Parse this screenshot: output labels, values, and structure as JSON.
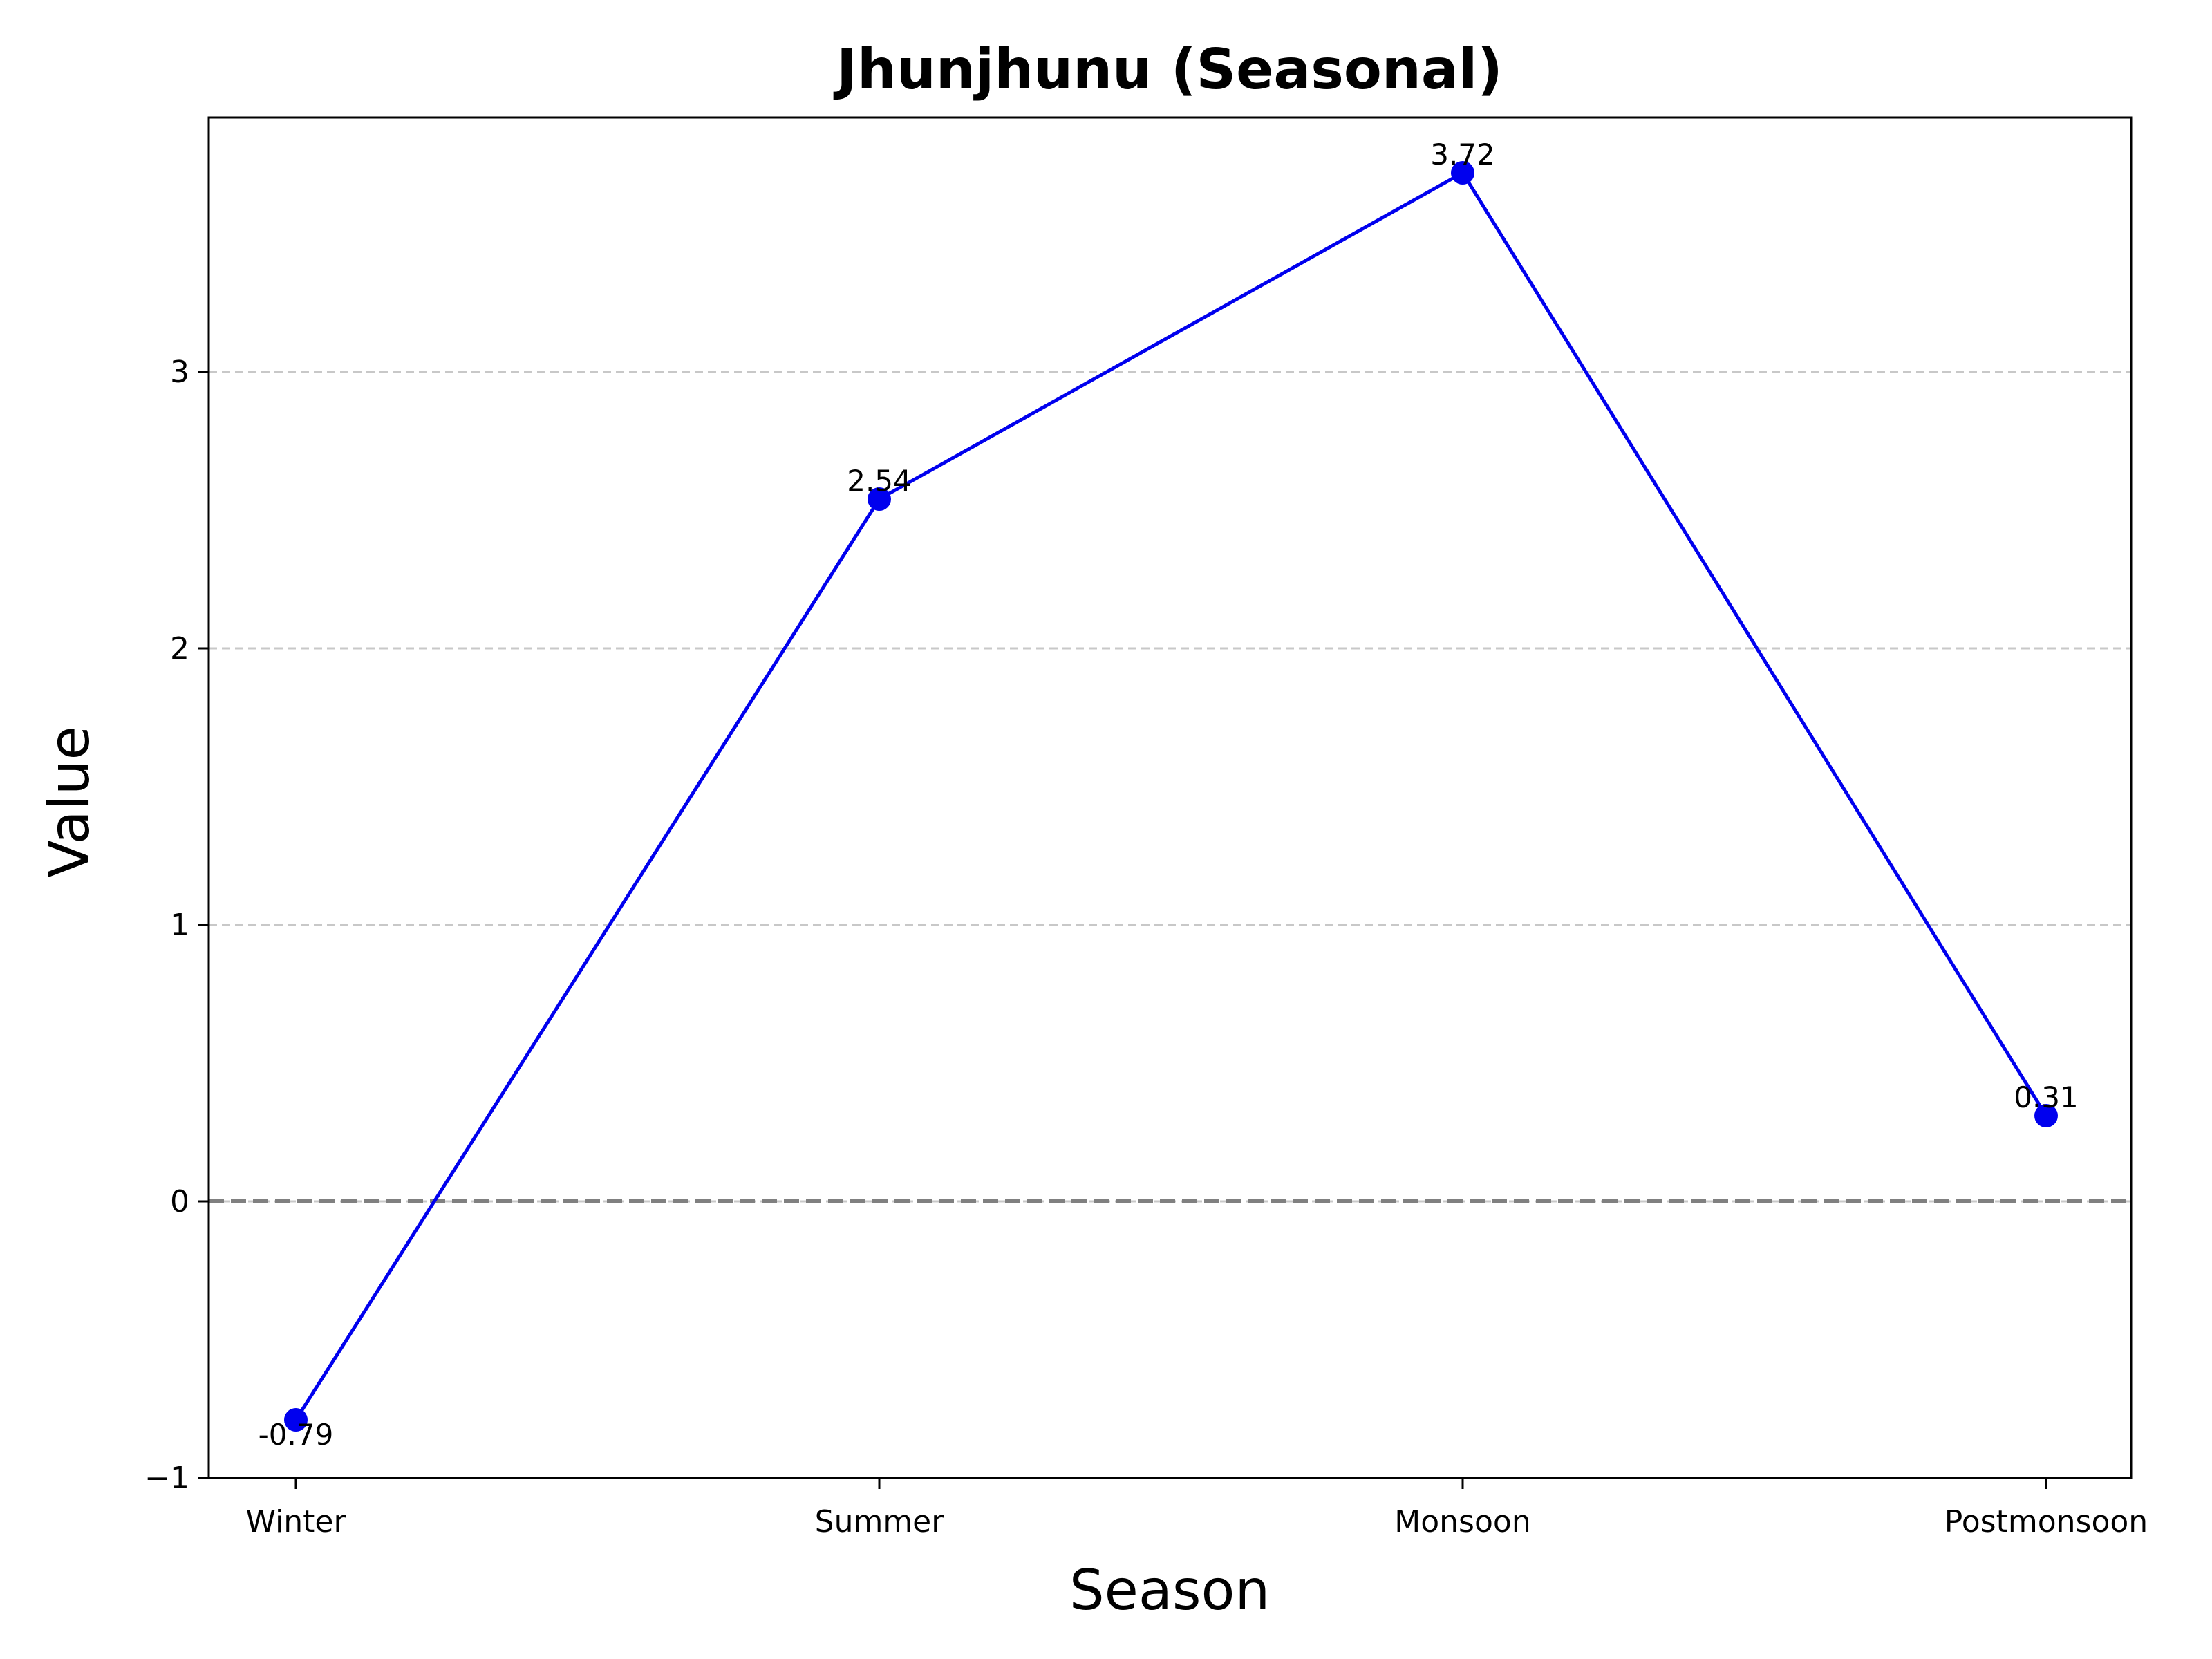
{
  "chart_data": {
    "type": "line",
    "title": "Jhunjhunu (Seasonal)",
    "xlabel": "Season",
    "ylabel": "Value",
    "categories": [
      "Winter",
      "Summer",
      "Monsoon",
      "Postmonsoon"
    ],
    "series": [
      {
        "values": [
          -0.79,
          2.54,
          3.72,
          0.31
        ],
        "color": "#0000ee"
      }
    ],
    "data_labels": [
      "-0.79",
      "2.54",
      "3.72",
      "0.31"
    ],
    "yticks": [
      -1,
      0,
      1,
      2,
      3
    ],
    "ytick_labels": [
      "−1",
      "0",
      "1",
      "2",
      "3"
    ],
    "ylim": [
      -1.0,
      3.92
    ],
    "grid": {
      "axis": "y",
      "style": "dashed",
      "color": "#c8c8c8"
    },
    "reference_line": {
      "y": 0,
      "style": "dashed",
      "color": "#808080"
    },
    "line_color": "#0000ee",
    "marker": "circle"
  }
}
